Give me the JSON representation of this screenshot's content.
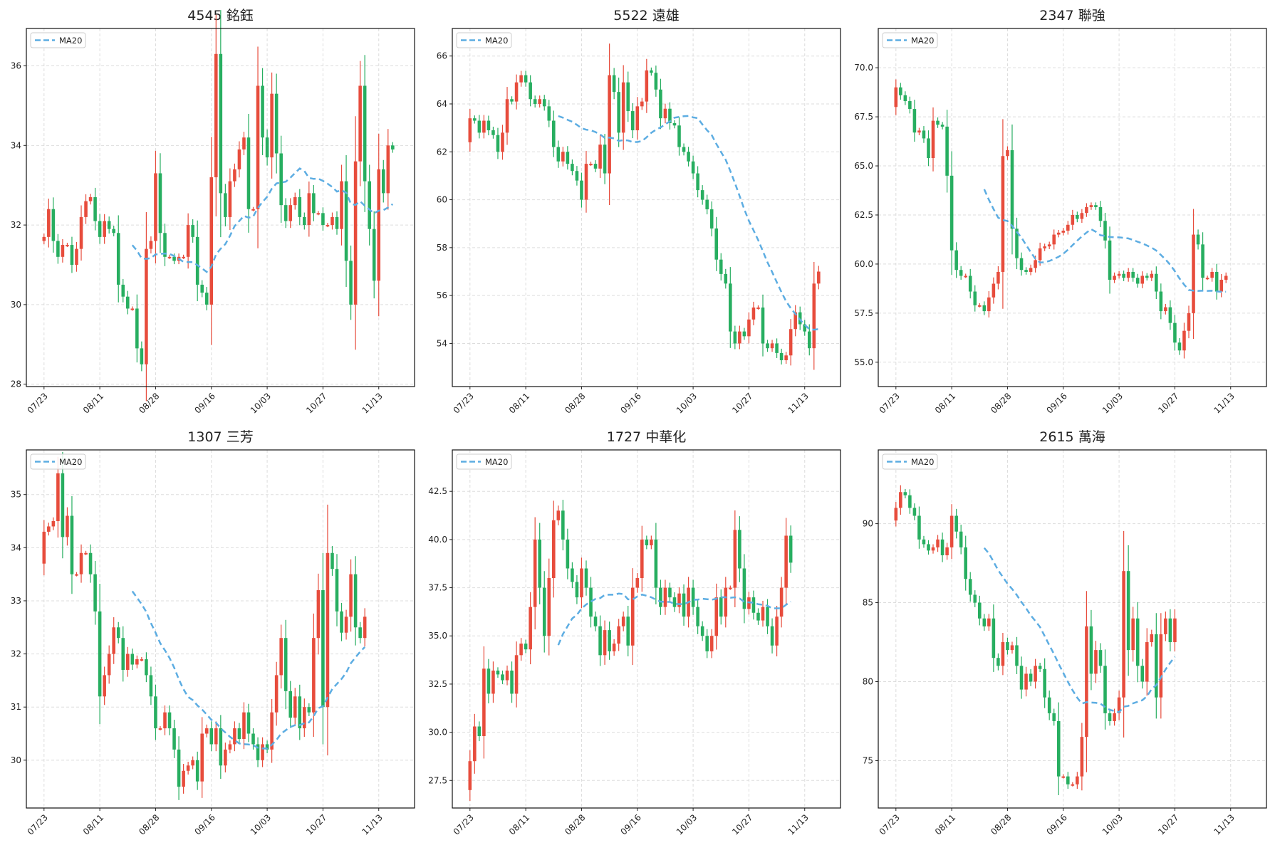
{
  "colors": {
    "up": "#e74c3c",
    "down": "#27ae60",
    "ma": "#5dade2",
    "grid": "#dddddd"
  },
  "legend_label": "MA20",
  "chart_data": [
    {
      "type": "candlestick",
      "title": "4545 銘鈺",
      "ylim": [
        27.94,
        36.94
      ],
      "xlim": [
        -3.8,
        79.7
      ],
      "yticks": [
        28,
        30,
        32,
        34,
        36
      ],
      "ytick_labels": [
        "28",
        "30",
        "32",
        "34",
        "36"
      ],
      "xticks": [
        0,
        12,
        24,
        36,
        48,
        60,
        72
      ],
      "xtick_labels": [
        "07/23",
        "08/11",
        "08/28",
        "09/16",
        "10/03",
        "10/27",
        "11/13"
      ],
      "first_open": 31.6,
      "ma_window": 20,
      "close": [
        31.7,
        32.4,
        31.6,
        31.2,
        31.5,
        31.5,
        31.0,
        31.4,
        32.2,
        32.6,
        32.7,
        32.1,
        31.7,
        32.1,
        31.9,
        31.8,
        30.5,
        30.2,
        29.9,
        29.9,
        28.9,
        28.5,
        31.4,
        31.6,
        33.3,
        31.8,
        31.2,
        31.2,
        31.1,
        31.2,
        31.2,
        32.0,
        31.7,
        30.5,
        30.3,
        30.0,
        33.2,
        36.3,
        32.8,
        32.2,
        33.1,
        33.4,
        33.9,
        34.2,
        32.4,
        32.4,
        35.5,
        34.2,
        33.7,
        35.3,
        33.8,
        32.5,
        32.1,
        32.5,
        32.7,
        32.2,
        32.0,
        32.8,
        32.3,
        32.3,
        32.0,
        32.0,
        32.2,
        31.9,
        33.1,
        31.1,
        30.0,
        33.6,
        35.5,
        33.1,
        31.9,
        30.6,
        33.4,
        32.8,
        34.0,
        33.9
      ]
    },
    {
      "type": "candlestick",
      "title": "5522 遠雄",
      "ylim": [
        52.2,
        67.15
      ],
      "xlim": [
        -3.8,
        79.7
      ],
      "yticks": [
        54,
        56,
        58,
        60,
        62,
        64,
        66
      ],
      "ytick_labels": [
        "54",
        "56",
        "58",
        "60",
        "62",
        "64",
        "66"
      ],
      "xticks": [
        0,
        12,
        24,
        36,
        48,
        60,
        72
      ],
      "xtick_labels": [
        "07/23",
        "08/11",
        "08/28",
        "09/16",
        "10/03",
        "10/27",
        "11/13"
      ],
      "first_open": 62.4,
      "ma_window": 20,
      "close": [
        63.4,
        63.3,
        62.8,
        63.3,
        62.9,
        62.7,
        62.0,
        62.8,
        64.2,
        64.1,
        64.9,
        65.2,
        64.9,
        64.2,
        64.0,
        64.2,
        63.9,
        63.3,
        62.2,
        61.6,
        62.0,
        61.5,
        61.2,
        60.8,
        60.0,
        61.5,
        61.5,
        61.3,
        62.3,
        61.1,
        65.2,
        64.5,
        62.8,
        64.9,
        63.7,
        62.9,
        63.9,
        64.1,
        65.4,
        65.3,
        64.6,
        63.4,
        63.8,
        63.2,
        63.1,
        62.2,
        62.0,
        61.6,
        61.1,
        60.4,
        60.0,
        59.6,
        58.8,
        57.5,
        56.9,
        56.5,
        54.5,
        54.0,
        54.5,
        54.3,
        55.0,
        55.5,
        55.5,
        54.0,
        53.8,
        54.0,
        53.6,
        53.3,
        53.5,
        54.6,
        55.3,
        54.8,
        54.5,
        53.8,
        56.5,
        57.0
      ]
    },
    {
      "type": "candlestick",
      "title": "2347 聯強",
      "ylim": [
        53.76,
        72.0
      ],
      "xlim": [
        -3.8,
        79.7
      ],
      "yticks": [
        55,
        57.5,
        60,
        62.5,
        65,
        67.5,
        70
      ],
      "ytick_labels": [
        "55.0",
        "57.5",
        "60.0",
        "62.5",
        "65.0",
        "67.5",
        "70.0"
      ],
      "xticks": [
        0,
        12,
        24,
        36,
        48,
        60,
        72
      ],
      "xtick_labels": [
        "07/23",
        "08/11",
        "08/28",
        "09/16",
        "10/03",
        "10/27",
        "11/13"
      ],
      "first_open": 68.0,
      "ma_window": 20,
      "close": [
        69.0,
        68.6,
        68.3,
        67.9,
        66.7,
        66.8,
        66.4,
        65.4,
        67.3,
        67.1,
        67.0,
        64.5,
        60.7,
        59.7,
        59.4,
        59.4,
        58.6,
        57.9,
        57.9,
        57.6,
        58.3,
        59.0,
        59.6,
        65.5,
        65.8,
        61.8,
        60.3,
        59.7,
        59.6,
        59.8,
        60.2,
        60.8,
        60.9,
        61.0,
        61.5,
        61.6,
        61.7,
        62.0,
        62.5,
        62.3,
        62.6,
        62.9,
        63.0,
        62.9,
        62.2,
        61.2,
        59.2,
        59.4,
        59.5,
        59.3,
        59.6,
        59.3,
        59.0,
        59.4,
        59.3,
        59.5,
        58.6,
        57.6,
        57.8,
        57.0,
        56.0,
        55.6,
        56.6,
        57.5,
        61.5,
        61.0,
        59.3,
        59.3,
        59.6,
        58.6,
        59.2,
        59.4
      ]
    },
    {
      "type": "candlestick",
      "title": "1307 三芳",
      "ylim": [
        29.1,
        35.84
      ],
      "xlim": [
        -3.8,
        79.7
      ],
      "yticks": [
        30,
        31,
        32,
        33,
        34,
        35
      ],
      "ytick_labels": [
        "30",
        "31",
        "32",
        "33",
        "34",
        "35"
      ],
      "xticks": [
        0,
        12,
        24,
        36,
        48,
        60,
        72
      ],
      "xtick_labels": [
        "07/23",
        "08/11",
        "08/28",
        "09/16",
        "10/03",
        "10/27",
        "11/13"
      ],
      "first_open": 33.7,
      "ma_window": 20,
      "close": [
        34.3,
        34.4,
        34.5,
        35.4,
        34.2,
        34.6,
        33.5,
        33.5,
        33.9,
        33.9,
        33.5,
        32.8,
        31.2,
        31.6,
        32.0,
        32.5,
        32.3,
        31.7,
        32.0,
        31.8,
        31.9,
        31.9,
        31.6,
        31.2,
        30.6,
        30.6,
        30.9,
        30.6,
        30.2,
        29.5,
        29.8,
        29.9,
        30.0,
        29.6,
        30.5,
        30.6,
        30.3,
        30.6,
        29.9,
        30.2,
        30.3,
        30.6,
        30.4,
        30.9,
        30.5,
        30.3,
        30.0,
        30.3,
        30.2,
        30.9,
        31.6,
        32.3,
        31.3,
        30.8,
        31.2,
        30.6,
        31.0,
        30.9,
        32.3,
        33.2,
        31.0,
        33.9,
        33.6,
        32.8,
        32.4,
        32.7,
        33.5,
        32.5,
        32.3,
        32.7
      ]
    },
    {
      "type": "candlestick",
      "title": "1727 中華化",
      "ylim": [
        26.07,
        44.65
      ],
      "xlim": [
        -3.8,
        79.7
      ],
      "yticks": [
        27.5,
        30,
        32.5,
        35,
        37.5,
        40,
        42.5
      ],
      "ytick_labels": [
        "27.5",
        "30.0",
        "32.5",
        "35.0",
        "37.5",
        "40.0",
        "42.5"
      ],
      "xticks": [
        0,
        12,
        24,
        36,
        48,
        60,
        72
      ],
      "xtick_labels": [
        "07/23",
        "08/11",
        "08/28",
        "09/16",
        "10/03",
        "10/27",
        "11/13"
      ],
      "first_open": 27.0,
      "ma_window": 20,
      "close": [
        28.5,
        30.3,
        29.8,
        33.3,
        32.0,
        33.2,
        33.0,
        32.7,
        33.2,
        32.0,
        34.0,
        34.6,
        34.3,
        36.5,
        40.0,
        37.5,
        35.0,
        38.0,
        41.0,
        41.5,
        40.0,
        38.5,
        37.8,
        37.0,
        38.5,
        37.5,
        36.0,
        35.5,
        34.0,
        35.3,
        34.2,
        34.6,
        35.5,
        36.0,
        34.5,
        37.5,
        38.0,
        40.0,
        39.7,
        40.0,
        37.5,
        36.5,
        37.5,
        37.0,
        36.5,
        37.2,
        36.0,
        37.5,
        36.5,
        35.5,
        35.0,
        34.2,
        35.0,
        37.0,
        36.0,
        37.5,
        37.5,
        40.5,
        38.5,
        36.4,
        37.0,
        36.2,
        35.8,
        36.5,
        35.5,
        34.5,
        36.0,
        37.5,
        40.2,
        38.8
      ]
    },
    {
      "type": "candlestick",
      "title": "2615 萬海",
      "ylim": [
        72.0,
        94.67
      ],
      "xlim": [
        -3.8,
        79.7
      ],
      "yticks": [
        75,
        80,
        85,
        90
      ],
      "ytick_labels": [
        "75",
        "80",
        "85",
        "90"
      ],
      "xticks": [
        0,
        12,
        24,
        36,
        48,
        60,
        72
      ],
      "xtick_labels": [
        "07/23",
        "08/11",
        "08/28",
        "09/16",
        "10/03",
        "10/27",
        "11/13"
      ],
      "first_open": 90.2,
      "ma_window": 20,
      "close": [
        91.0,
        92.0,
        91.8,
        91.0,
        90.5,
        89.0,
        88.7,
        88.3,
        88.5,
        89.0,
        88.0,
        88.5,
        90.5,
        89.5,
        88.5,
        86.5,
        85.5,
        85.0,
        84.0,
        83.5,
        84.0,
        81.5,
        81.0,
        82.5,
        82.0,
        82.3,
        81.0,
        79.5,
        80.5,
        80.0,
        81.0,
        80.8,
        79.0,
        78.0,
        77.5,
        74.0,
        74.0,
        73.5,
        73.5,
        74.0,
        76.5,
        83.5,
        80.5,
        82.0,
        81.0,
        78.0,
        77.5,
        78.0,
        79.0,
        87.0,
        82.0,
        84.0,
        81.0,
        80.0,
        82.5,
        83.0,
        79.0,
        83.0,
        84.0,
        82.5,
        84.0
      ]
    }
  ]
}
